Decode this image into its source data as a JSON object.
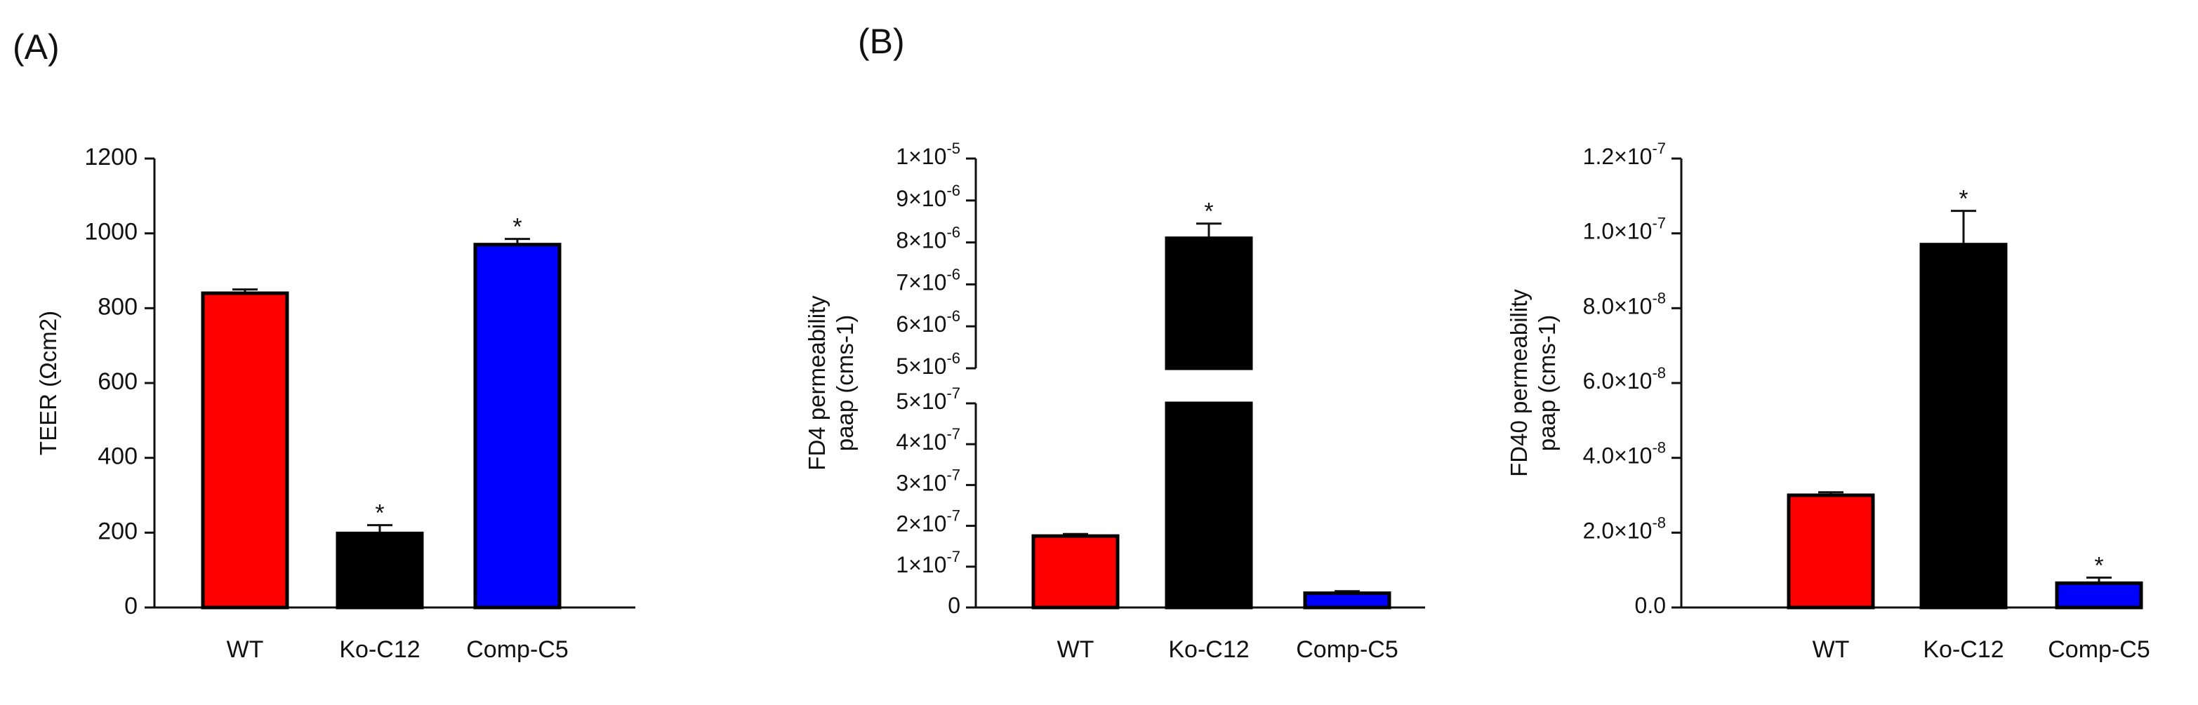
{
  "figure": {
    "panel_a_label": "(A)",
    "panel_b_label": "(B)"
  },
  "colors": {
    "wt": "#ff0000",
    "ko": "#000000",
    "comp": "#0000ff",
    "axis": "#111111"
  },
  "chart_data": [
    {
      "id": "teer",
      "type": "bar",
      "title": "",
      "xlabel": "",
      "ylabel": "TEER (Ωcm2)",
      "categories": [
        "WT",
        "Ko-C12",
        "Comp-C5"
      ],
      "values": [
        840,
        198,
        970
      ],
      "errors": [
        10,
        22,
        15
      ],
      "significance": [
        "",
        "*",
        "*"
      ],
      "ylim": [
        0,
        1200
      ],
      "yticks": [
        0,
        200,
        400,
        600,
        800,
        1000,
        1200
      ],
      "ytick_labels": [
        "0",
        "200",
        "400",
        "600",
        "800",
        "1000",
        "1200"
      ]
    },
    {
      "id": "fd4",
      "type": "bar",
      "title": "",
      "xlabel": "",
      "ylabel": [
        "FD4 permeability",
        "paap (cms-1)"
      ],
      "categories": [
        "WT",
        "Ko-C12",
        "Comp-C5"
      ],
      "values": [
        1.75e-07,
        8.1e-06,
        3.5e-08
      ],
      "errors": [
        5e-09,
        3.5e-07,
        5e-09
      ],
      "significance": [
        "",
        "*",
        ""
      ],
      "broken_axis": true,
      "segments": [
        {
          "ylim": [
            0,
            5e-07
          ],
          "ticks": [
            {
              "value": 0,
              "mant": "0",
              "exp": ""
            },
            {
              "value": 1e-07,
              "mant": "1×10",
              "exp": "-7"
            },
            {
              "value": 2e-07,
              "mant": "2×10",
              "exp": "-7"
            },
            {
              "value": 3e-07,
              "mant": "3×10",
              "exp": "-7"
            },
            {
              "value": 4e-07,
              "mant": "4×10",
              "exp": "-7"
            },
            {
              "value": 5e-07,
              "mant": "5×10",
              "exp": "-7"
            }
          ]
        },
        {
          "ylim": [
            5e-06,
            1e-05
          ],
          "ticks": [
            {
              "value": 5e-06,
              "mant": "5×10",
              "exp": "-6"
            },
            {
              "value": 6e-06,
              "mant": "6×10",
              "exp": "-6"
            },
            {
              "value": 7e-06,
              "mant": "7×10",
              "exp": "-6"
            },
            {
              "value": 8e-06,
              "mant": "8×10",
              "exp": "-6"
            },
            {
              "value": 9e-06,
              "mant": "9×10",
              "exp": "-6"
            },
            {
              "value": 1e-05,
              "mant": "1×10",
              "exp": "-5"
            }
          ]
        }
      ]
    },
    {
      "id": "fd40",
      "type": "bar",
      "title": "",
      "xlabel": "",
      "ylabel": [
        "FD40 permeability",
        "paap (cms-1)"
      ],
      "categories": [
        "WT",
        "Ko-C12",
        "Comp-C5"
      ],
      "values": [
        3e-08,
        9.7e-08,
        6.5e-09
      ],
      "errors": [
        8e-10,
        9e-09,
        1.5e-09
      ],
      "significance": [
        "",
        "*",
        "*"
      ],
      "ylim": [
        0,
        1.2e-07
      ],
      "ticks": [
        {
          "value": 0,
          "mant": "0.0",
          "exp": ""
        },
        {
          "value": 2e-08,
          "mant": "2.0×10",
          "exp": "-8"
        },
        {
          "value": 4e-08,
          "mant": "4.0×10",
          "exp": "-8"
        },
        {
          "value": 6e-08,
          "mant": "6.0×10",
          "exp": "-8"
        },
        {
          "value": 8e-08,
          "mant": "8.0×10",
          "exp": "-8"
        },
        {
          "value": 1e-07,
          "mant": "1.0×10",
          "exp": "-7"
        },
        {
          "value": 1.2e-07,
          "mant": "1.2×10",
          "exp": "-7"
        }
      ]
    }
  ]
}
